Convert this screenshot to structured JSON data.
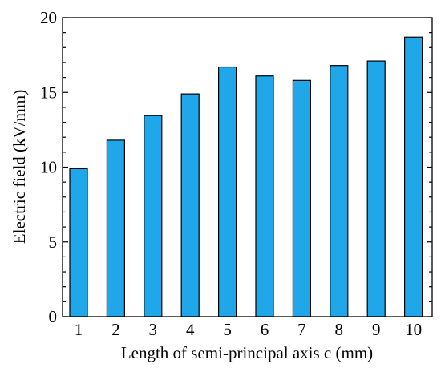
{
  "chart_data": {
    "type": "bar",
    "categories": [
      "1",
      "2",
      "3",
      "4",
      "5",
      "6",
      "7",
      "8",
      "9",
      "10"
    ],
    "values": [
      9.9,
      11.8,
      13.45,
      14.9,
      16.7,
      16.1,
      15.8,
      16.8,
      17.1,
      18.7
    ],
    "xlabel": "Length of  semi-principal axis c (mm)",
    "ylabel": "Electric field (kV/mm)",
    "ylim": [
      0,
      20
    ],
    "yticks": [
      "0",
      "5",
      "10",
      "15",
      "20"
    ],
    "grid": false,
    "colors": {
      "bar": "#1fa7ea",
      "axis": "#000000"
    }
  }
}
